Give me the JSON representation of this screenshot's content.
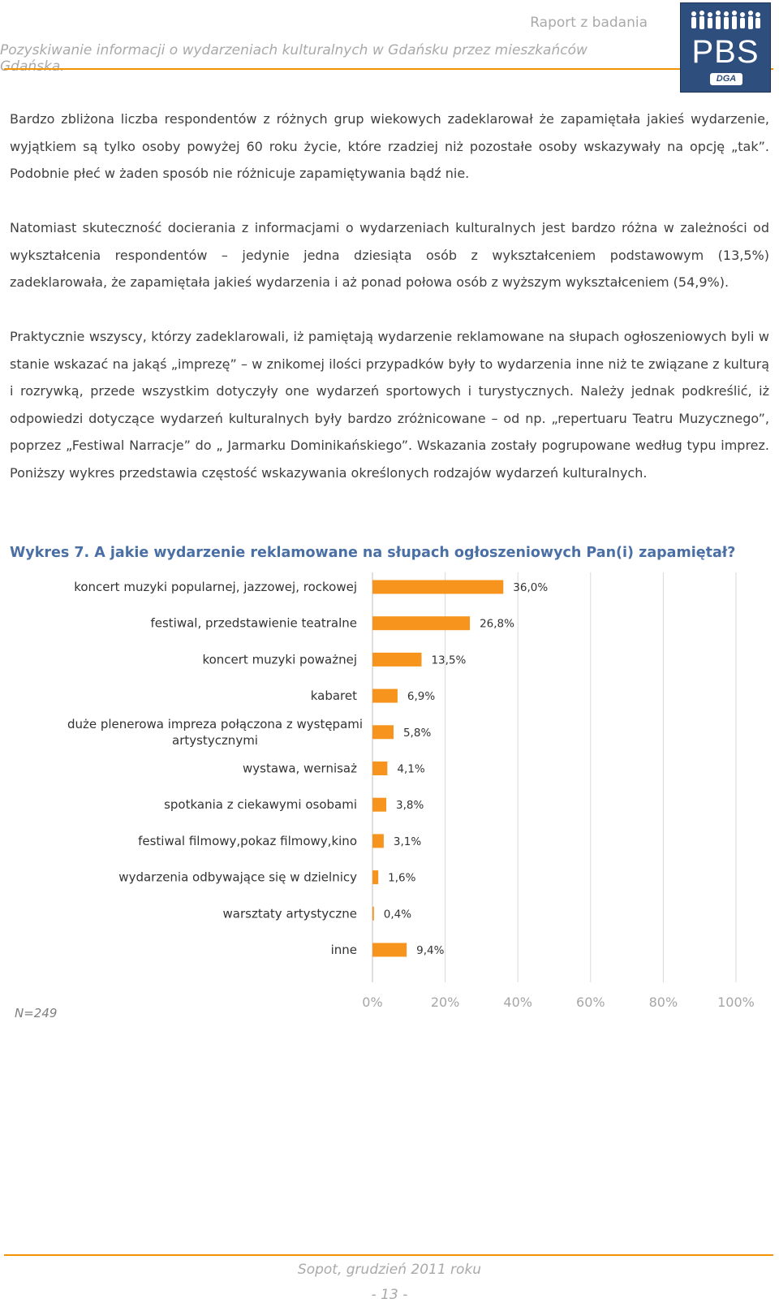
{
  "header": {
    "report_label": "Raport z badania",
    "subtitle": "Pozyskiwanie informacji o wydarzeniach kulturalnych w Gdańsku przez mieszkańców Gdańska.",
    "logo_text": "PBS",
    "logo_sub": "DGA",
    "accent_color": "#f29400",
    "logo_color": "#2e4e7e"
  },
  "paragraphs": [
    "Bardzo zbliżona liczba respondentów z różnych grup wiekowych zadeklarował że zapamiętała jakieś wydarzenie, wyjątkiem są tylko osoby powyżej 60 roku życie, które rzadziej niż pozostałe osoby wskazywały na opcję „tak”. Podobnie płeć w żaden sposób nie różnicuje zapamiętywania bądź nie.",
    "Natomiast skuteczność docierania z informacjami o wydarzeniach kulturalnych jest bardzo różna w zależności od wykształcenia respondentów – jedynie jedna dziesiąta osób z wykształceniem podstawowym (13,5%) zadeklarowała, że zapamiętała jakieś wydarzenia i aż ponad połowa osób z wyższym wykształceniem (54,9%).",
    "Praktycznie wszyscy, którzy zadeklarowali, iż pamiętają wydarzenie reklamowane na słupach ogłoszeniowych byli w stanie wskazać na jakąś „imprezę” – w znikomej ilości przypadków były to wydarzenia inne niż te związane z kulturą i rozrywką, przede wszystkim dotyczyły one wydarzeń sportowych i turystycznych. Należy jednak podkreślić, iż odpowiedzi dotyczące wydarzeń kulturalnych były bardzo zróżnicowane – od np. „repertuaru Teatru Muzycznego”, poprzez „Festiwal Narracje” do „ Jarmarku Dominikańskiego”. Wskazania zostały pogrupowane według typu imprez. Poniższy wykres przedstawia częstość wskazywania określonych rodzajów wydarzeń kulturalnych."
  ],
  "chart_title": "Wykres 7. A jakie wydarzenie reklamowane na słupach ogłoszeniowych Pan(i) zapamiętał?",
  "chart_data": {
    "type": "bar",
    "orientation": "horizontal",
    "categories": [
      [
        "koncert muzyki popularnej, jazzowej, rockowej"
      ],
      [
        "festiwal, przedstawienie teatralne"
      ],
      [
        "koncert muzyki poważnej"
      ],
      [
        "kabaret"
      ],
      [
        "duże plenerowa impreza połączona z występami",
        "artystycznymi"
      ],
      [
        "wystawa, wernisaż"
      ],
      [
        "spotkania z ciekawymi osobami"
      ],
      [
        "festiwal filmowy,pokaz filmowy,kino"
      ],
      [
        "wydarzenia odbywające się w dzielnicy"
      ],
      [
        "warsztaty artystyczne"
      ],
      [
        "inne"
      ]
    ],
    "values": [
      36.0,
      26.8,
      13.5,
      6.9,
      5.8,
      4.1,
      3.8,
      3.1,
      1.6,
      0.4,
      9.4
    ],
    "value_labels": [
      "36,0%",
      "26,8%",
      "13,5%",
      "6,9%",
      "5,8%",
      "4,1%",
      "3,8%",
      "3,1%",
      "1,6%",
      "0,4%",
      "9,4%"
    ],
    "xlim": [
      0,
      100
    ],
    "xticks": [
      0,
      20,
      40,
      60,
      80,
      100
    ],
    "xtick_labels": [
      "0%",
      "20%",
      "40%",
      "60%",
      "80%",
      "100%"
    ],
    "grid": true,
    "bar_color": "#f7941d"
  },
  "sample_note": "N=249",
  "footer": {
    "place_date": "Sopot, grudzień 2011 roku",
    "page_number": "- 13 -"
  }
}
